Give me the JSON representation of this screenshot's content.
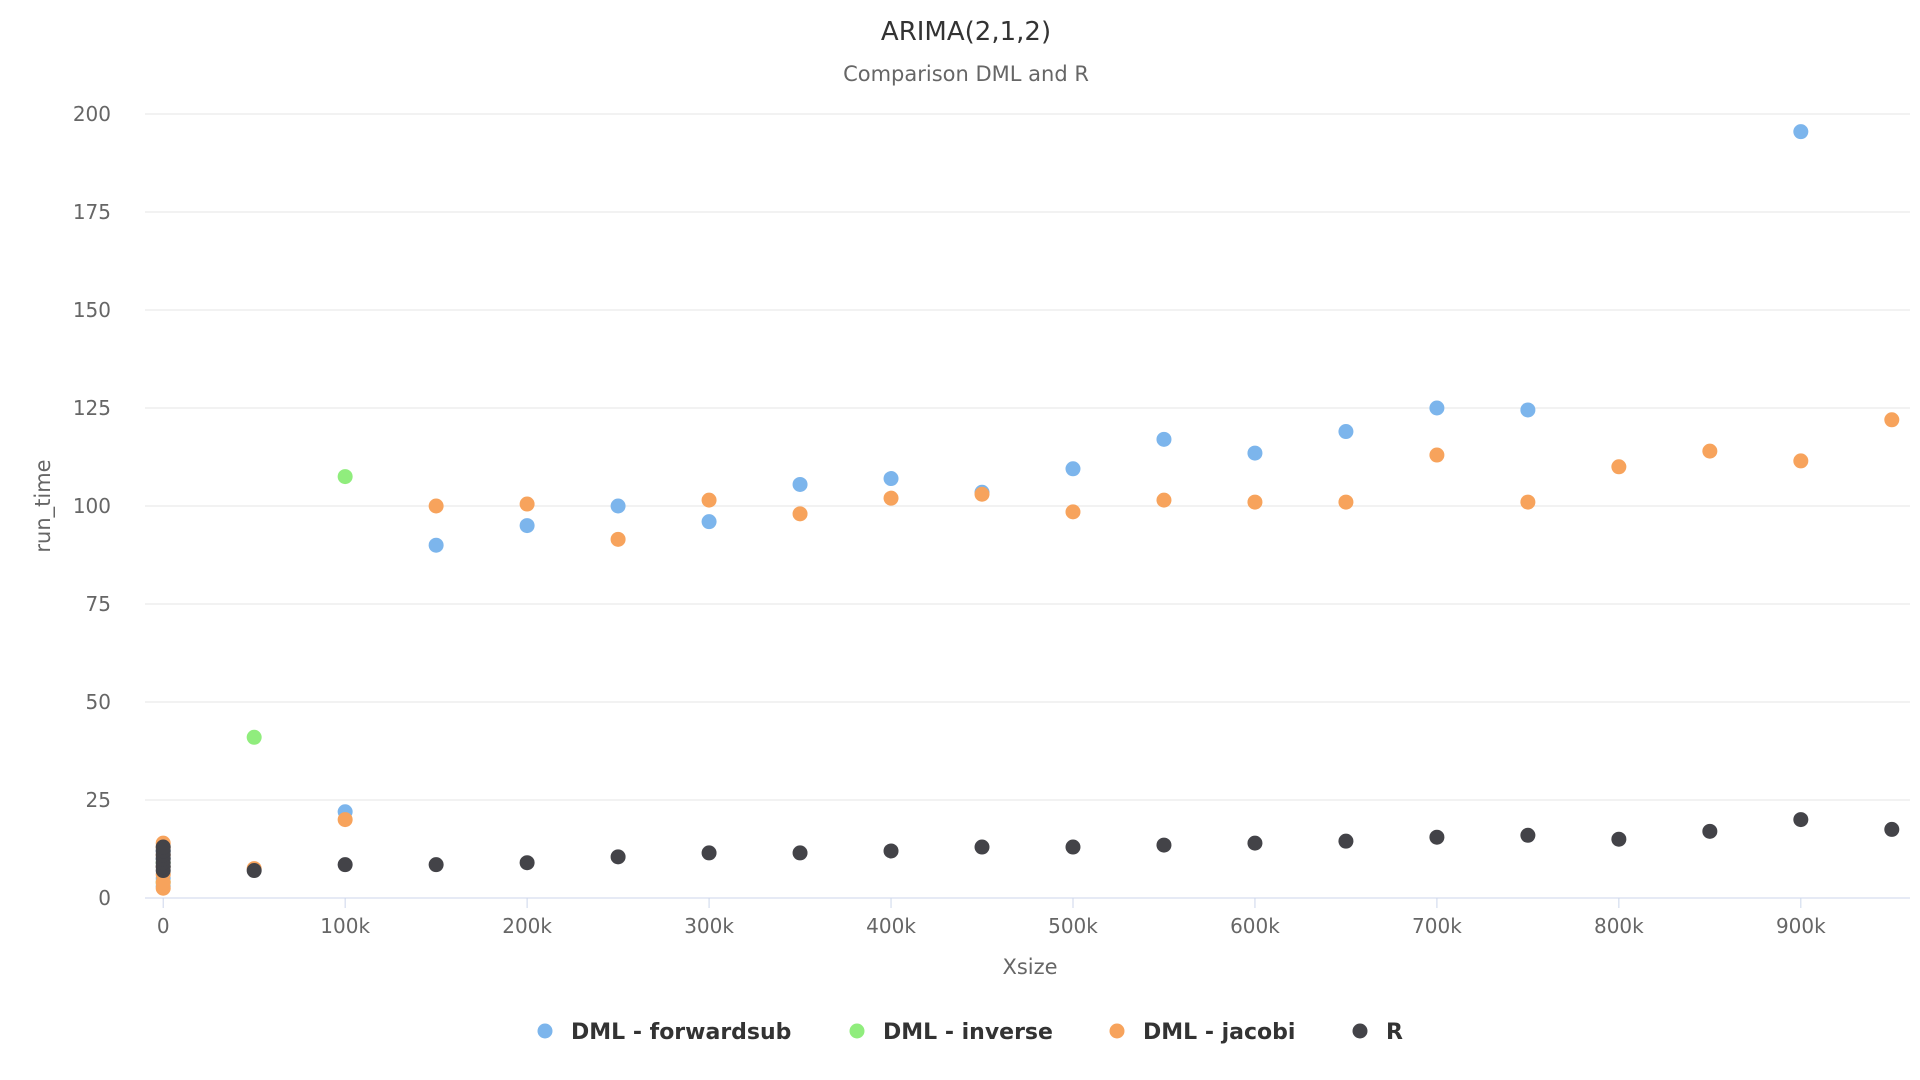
{
  "chart_data": {
    "type": "scatter",
    "title": "ARIMA(2,1,2)",
    "subtitle": "Comparison DML and R",
    "xlabel": "Xsize",
    "ylabel": "run_time",
    "xlim": [
      -10000,
      960000
    ],
    "ylim": [
      0,
      200
    ],
    "x_ticks": [
      0,
      100000,
      200000,
      300000,
      400000,
      500000,
      600000,
      700000,
      800000,
      900000
    ],
    "x_tick_labels": [
      "0",
      "100k",
      "200k",
      "300k",
      "400k",
      "500k",
      "600k",
      "700k",
      "800k",
      "900k"
    ],
    "y_ticks": [
      0,
      25,
      50,
      75,
      100,
      125,
      150,
      175,
      200
    ],
    "y_tick_labels": [
      "0",
      "25",
      "50",
      "75",
      "100",
      "125",
      "150",
      "175",
      "200"
    ],
    "grid": true,
    "legend_position": "bottom-center",
    "series": [
      {
        "name": "DML - forwardsub",
        "color": "#7cb5ec",
        "points": [
          [
            0,
            3
          ],
          [
            0,
            5
          ],
          [
            0,
            8
          ],
          [
            0,
            10
          ],
          [
            0,
            12
          ],
          [
            100000,
            22
          ],
          [
            150000,
            90
          ],
          [
            200000,
            95
          ],
          [
            250000,
            100
          ],
          [
            300000,
            96
          ],
          [
            350000,
            105.5
          ],
          [
            400000,
            107
          ],
          [
            450000,
            103.5
          ],
          [
            500000,
            109.5
          ],
          [
            550000,
            117
          ],
          [
            600000,
            113.5
          ],
          [
            650000,
            119
          ],
          [
            700000,
            125
          ],
          [
            750000,
            124.5
          ],
          [
            900000,
            195.5
          ]
        ]
      },
      {
        "name": "DML - inverse",
        "color": "#90ed7d",
        "points": [
          [
            0,
            4
          ],
          [
            0,
            9
          ],
          [
            50000,
            41
          ],
          [
            100000,
            107.5
          ]
        ]
      },
      {
        "name": "DML - jacobi",
        "color": "#f7a35c",
        "points": [
          [
            0,
            2.5
          ],
          [
            0,
            4
          ],
          [
            0,
            6
          ],
          [
            0,
            8
          ],
          [
            0,
            11
          ],
          [
            0,
            13
          ],
          [
            0,
            14
          ],
          [
            50000,
            7.5
          ],
          [
            100000,
            20
          ],
          [
            150000,
            100
          ],
          [
            200000,
            100.5
          ],
          [
            250000,
            91.5
          ],
          [
            300000,
            101.5
          ],
          [
            350000,
            98
          ],
          [
            400000,
            102
          ],
          [
            450000,
            103
          ],
          [
            500000,
            98.5
          ],
          [
            550000,
            101.5
          ],
          [
            600000,
            101
          ],
          [
            650000,
            101
          ],
          [
            700000,
            113
          ],
          [
            750000,
            101
          ],
          [
            800000,
            110
          ],
          [
            850000,
            114
          ],
          [
            900000,
            111.5
          ],
          [
            950000,
            122
          ]
        ]
      },
      {
        "name": "R",
        "color": "#434348",
        "points": [
          [
            0,
            7
          ],
          [
            0,
            8
          ],
          [
            0,
            9
          ],
          [
            0,
            10
          ],
          [
            0,
            11
          ],
          [
            0,
            12
          ],
          [
            0,
            13
          ],
          [
            50000,
            7
          ],
          [
            100000,
            8.5
          ],
          [
            150000,
            8.5
          ],
          [
            200000,
            9
          ],
          [
            250000,
            10.5
          ],
          [
            300000,
            11.5
          ],
          [
            350000,
            11.5
          ],
          [
            400000,
            12
          ],
          [
            450000,
            13
          ],
          [
            500000,
            13
          ],
          [
            550000,
            13.5
          ],
          [
            600000,
            14
          ],
          [
            650000,
            14.5
          ],
          [
            700000,
            15.5
          ],
          [
            750000,
            16
          ],
          [
            800000,
            15
          ],
          [
            850000,
            17
          ],
          [
            900000,
            20
          ],
          [
            950000,
            17.5
          ]
        ]
      }
    ]
  }
}
